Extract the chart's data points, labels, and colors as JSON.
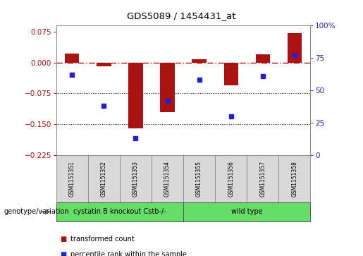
{
  "title": "GDS5089 / 1454431_at",
  "samples": [
    "GSM1151351",
    "GSM1151352",
    "GSM1151353",
    "GSM1151354",
    "GSM1151355",
    "GSM1151356",
    "GSM1151357",
    "GSM1151358"
  ],
  "red_values": [
    0.022,
    -0.01,
    -0.16,
    -0.12,
    0.008,
    -0.055,
    0.02,
    0.072
  ],
  "blue_percentiles": [
    62,
    38,
    13,
    42,
    58,
    30,
    61,
    77
  ],
  "bar_color": "#aa1111",
  "dot_color": "#2222cc",
  "ylim_left": [
    -0.225,
    0.09
  ],
  "ylim_right": [
    0,
    100
  ],
  "yticks_left": [
    0.075,
    0,
    -0.075,
    -0.15,
    -0.225
  ],
  "yticks_right": [
    100,
    75,
    50,
    25,
    0
  ],
  "hlines": [
    -0.075,
    -0.15
  ],
  "zero_line": 0.0,
  "group1_label": "cystatin B knockout Cstb-/-",
  "group2_label": "wild type",
  "group1_samples": 4,
  "group2_samples": 4,
  "group_color": "#66dd66",
  "genotype_label": "genotype/variation",
  "legend1": "transformed count",
  "legend2": "percentile rank within the sample",
  "bar_width": 0.45,
  "bg_color": "#d8d8d8",
  "plot_bg": "#ffffff"
}
